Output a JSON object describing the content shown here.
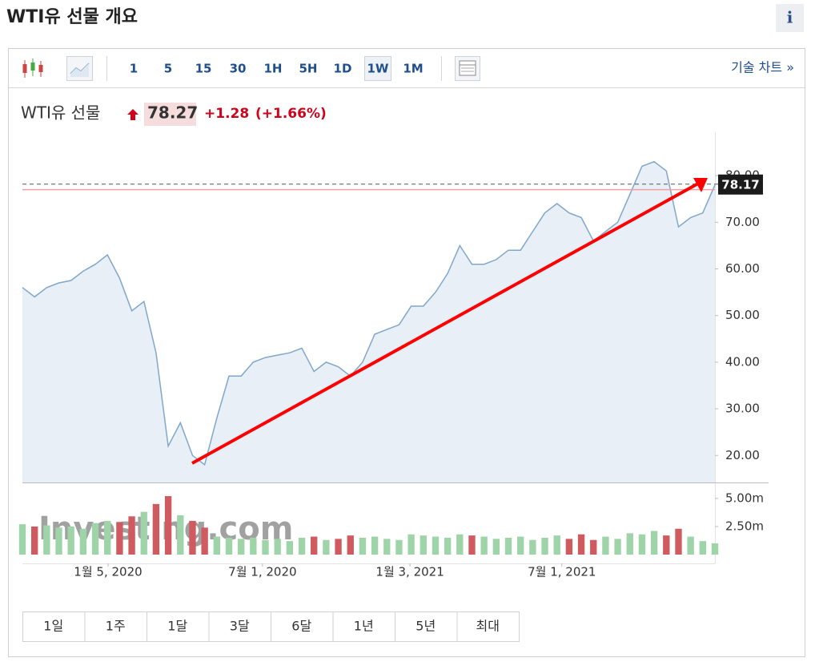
{
  "header": {
    "title": "WTI유 선물 개요",
    "info": "i"
  },
  "toolbar": {
    "intervals": [
      "1",
      "5",
      "15",
      "30",
      "1H",
      "5H",
      "1D",
      "1W",
      "1M"
    ],
    "selected": 7,
    "technical_chart": "기술 차트 »"
  },
  "quote": {
    "name": "WTI유 선물",
    "price": "78.27",
    "change": "+1.28",
    "change_percent": "(+1.66%)"
  },
  "chart_data": {
    "type": "line",
    "series": [
      {
        "color": "#7fa7cb",
        "fill": "#e8eff7",
        "values": [
          56,
          54,
          56,
          57,
          57.5,
          59.5,
          61,
          63,
          58,
          51,
          53,
          42,
          22,
          27,
          20,
          18,
          28,
          37,
          37,
          40,
          41,
          41.5,
          42,
          43,
          38,
          40,
          39,
          37,
          40,
          46,
          47,
          48,
          52,
          52,
          55,
          59,
          65,
          61,
          61,
          62,
          64,
          64,
          68,
          72,
          74,
          72,
          71,
          66,
          68,
          70,
          76,
          82,
          83,
          81,
          69,
          71,
          72,
          78
        ]
      }
    ],
    "xlim": [
      0,
      57
    ],
    "xticks": [
      {
        "value": 7.05,
        "label": "1월 5, 2020"
      },
      {
        "value": 19.76,
        "label": "7월 1, 2020"
      },
      {
        "value": 31.9,
        "label": "1월 3, 2021"
      },
      {
        "value": 44.4,
        "label": "7월 1, 2021"
      }
    ],
    "ylim": [
      14.2,
      89.3
    ],
    "yticks": [
      {
        "value": 20,
        "label": "20.00"
      },
      {
        "value": 30,
        "label": "30.00"
      },
      {
        "value": 40,
        "label": "40.00"
      },
      {
        "value": 50,
        "label": "50.00"
      },
      {
        "value": 60,
        "label": "60.00"
      },
      {
        "value": 70,
        "label": "70.00"
      },
      {
        "value": 80,
        "label": "80.00"
      }
    ],
    "last_value": 78.17,
    "reference_line": 77,
    "reference_color": "#f0a0a0",
    "volume": {
      "values": [
        2.7,
        2.5,
        2.6,
        2.4,
        2.5,
        2.3,
        2.8,
        3.0,
        2.9,
        3.4,
        3.8,
        4.5,
        5.2,
        3.5,
        3.0,
        2.4,
        1.6,
        1.5,
        1.4,
        1.5,
        1.3,
        1.4,
        1.2,
        1.5,
        1.6,
        1.3,
        1.4,
        1.7,
        1.5,
        1.6,
        1.4,
        1.3,
        1.8,
        1.7,
        1.6,
        1.5,
        1.8,
        1.7,
        1.6,
        1.4,
        1.5,
        1.6,
        1.3,
        1.5,
        1.7,
        1.4,
        1.8,
        1.3,
        1.6,
        1.4,
        1.9,
        1.8,
        2.1,
        1.7,
        2.3,
        1.6,
        1.2,
        1.0
      ],
      "ylim": [
        0,
        6.2
      ],
      "yticks": [
        {
          "value": 5,
          "label": "5.00m"
        },
        {
          "value": 2.5,
          "label": "2.50m"
        }
      ],
      "up_color": "#9fd4a9",
      "down_color": "#cf5a5f"
    },
    "watermark": "Investing.com"
  },
  "ranges": [
    "1일",
    "1주",
    "1달",
    "3달",
    "6달",
    "1년",
    "5년",
    "최대"
  ]
}
